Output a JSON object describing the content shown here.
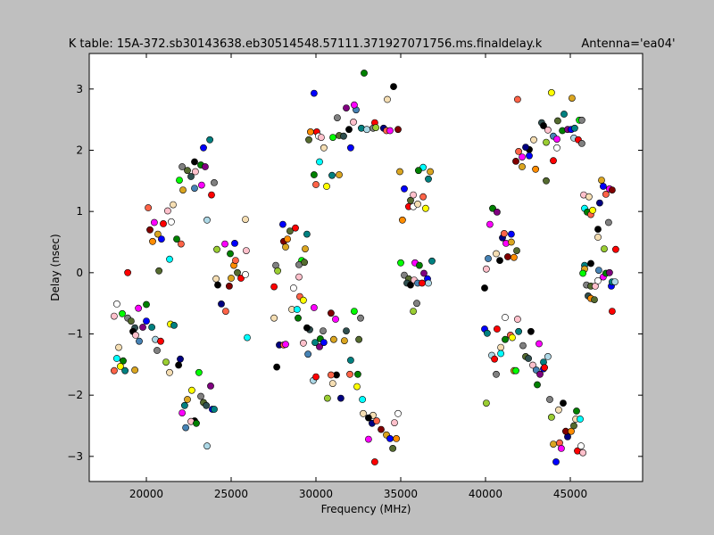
{
  "chart_data": {
    "type": "scatter",
    "title": "K table: 15A-372.sb30143638.eb30514548.57111.371927071756.ms.finaldelay.k",
    "subtitle": "Antenna='ea04'",
    "xlabel": "Frequency (MHz)",
    "ylabel": "Delay (nsec)",
    "xlim": [
      16632,
      49263
    ],
    "ylim": [
      -3.41,
      3.58
    ],
    "xticks": [
      20000,
      25000,
      30000,
      35000,
      40000,
      45000
    ],
    "xtick_labels": [
      "20000",
      "25000",
      "30000",
      "35000",
      "40000",
      "45000"
    ],
    "yticks": [
      -3,
      -2,
      -1,
      0,
      1,
      2,
      3
    ],
    "ytick_labels": [
      "−3",
      "−2",
      "−1",
      "0",
      "1",
      "2",
      "3"
    ],
    "grid": false,
    "legend": "none",
    "marker_colors": [
      "#ff0000",
      "#00ff00",
      "#0000ff",
      "#ffff00",
      "#ff00ff",
      "#00ffff",
      "#000000",
      "#ffffff",
      "#808080",
      "#ff8c00",
      "#008080",
      "#800000",
      "#008000",
      "#000080",
      "#ffc0cb",
      "#9acd32",
      "#556b2f",
      "#add8e6",
      "#daa520",
      "#800080",
      "#ff6347",
      "#4682b4",
      "#f5deb3",
      "#2f4f4f"
    ],
    "points": [
      [
        18900,
        0.0
      ],
      [
        18260,
        -0.51
      ],
      [
        18100,
        -0.71
      ],
      [
        18370,
        -1.22
      ],
      [
        18260,
        -1.4
      ],
      [
        18630,
        -1.44
      ],
      [
        18100,
        -1.6
      ],
      [
        18470,
        -1.53
      ],
      [
        18740,
        -1.6
      ],
      [
        19320,
        -1.59
      ],
      [
        18580,
        -0.67
      ],
      [
        18900,
        -0.74
      ],
      [
        19100,
        -0.79
      ],
      [
        19320,
        -0.9
      ],
      [
        19210,
        -0.96
      ],
      [
        19370,
        -1.02
      ],
      [
        19580,
        -1.12
      ],
      [
        19530,
        -0.58
      ],
      [
        20000,
        -0.52
      ],
      [
        19790,
        -0.89
      ],
      [
        20000,
        -0.79
      ],
      [
        20320,
        -0.89
      ],
      [
        20530,
        -1.09
      ],
      [
        20840,
        -1.12
      ],
      [
        20630,
        -1.27
      ],
      [
        21160,
        -1.46
      ],
      [
        21370,
        -1.63
      ],
      [
        21900,
        -1.51
      ],
      [
        22000,
        -1.41
      ],
      [
        20110,
        1.06
      ],
      [
        20470,
        0.82
      ],
      [
        20210,
        0.7
      ],
      [
        20680,
        0.63
      ],
      [
        20890,
        0.55
      ],
      [
        20370,
        0.51
      ],
      [
        20740,
        0.03
      ],
      [
        21000,
        0.8
      ],
      [
        21470,
        0.83
      ],
      [
        21260,
        1.01
      ],
      [
        21580,
        1.11
      ],
      [
        21370,
        0.22
      ],
      [
        21790,
        0.55
      ],
      [
        22050,
        0.47
      ],
      [
        21420,
        -0.84
      ],
      [
        21630,
        -0.86
      ],
      [
        22160,
        1.35
      ],
      [
        21950,
        1.51
      ],
      [
        22110,
        1.73
      ],
      [
        22420,
        1.67
      ],
      [
        22630,
        1.57
      ],
      [
        22840,
        1.81
      ],
      [
        22890,
        1.65
      ],
      [
        22840,
        1.38
      ],
      [
        23260,
        1.43
      ],
      [
        23210,
        1.76
      ],
      [
        23470,
        1.73
      ],
      [
        23370,
        2.04
      ],
      [
        23740,
        2.17
      ],
      [
        23580,
        0.86
      ],
      [
        23840,
        1.27
      ],
      [
        24000,
        1.47
      ],
      [
        24160,
        0.38
      ],
      [
        24110,
        -0.1
      ],
      [
        24210,
        -0.2
      ],
      [
        24420,
        -0.51
      ],
      [
        24680,
        -0.63
      ],
      [
        24630,
        0.47
      ],
      [
        24890,
        -0.22
      ],
      [
        25000,
        -0.09
      ],
      [
        25210,
        0.48
      ],
      [
        25160,
        0.12
      ],
      [
        25370,
        0.0
      ],
      [
        25580,
        -0.09
      ],
      [
        25840,
        -0.03
      ],
      [
        25890,
        0.36
      ],
      [
        25840,
        0.87
      ],
      [
        25950,
        -1.06
      ],
      [
        24950,
        0.31
      ],
      [
        25260,
        0.2
      ],
      [
        22680,
        -1.92
      ],
      [
        22260,
        -2.17
      ],
      [
        22420,
        -2.07
      ],
      [
        23100,
        -1.63
      ],
      [
        23210,
        -2.02
      ],
      [
        23370,
        -2.12
      ],
      [
        23530,
        -2.17
      ],
      [
        22840,
        -2.42
      ],
      [
        22630,
        -2.43
      ],
      [
        22320,
        -2.53
      ],
      [
        22110,
        -2.29
      ],
      [
        22950,
        -2.46
      ],
      [
        23790,
        -1.85
      ],
      [
        23890,
        -2.23
      ],
      [
        24000,
        -2.23
      ],
      [
        23580,
        -2.83
      ],
      [
        27530,
        -0.23
      ],
      [
        27630,
        0.12
      ],
      [
        27740,
        0.03
      ],
      [
        27530,
        -0.74
      ],
      [
        27690,
        -1.54
      ],
      [
        27840,
        -1.18
      ],
      [
        28100,
        -1.18
      ],
      [
        28210,
        -1.17
      ],
      [
        28100,
        0.51
      ],
      [
        28210,
        0.42
      ],
      [
        28050,
        0.79
      ],
      [
        28320,
        0.55
      ],
      [
        28470,
        0.68
      ],
      [
        28790,
        0.73
      ],
      [
        28680,
        -0.25
      ],
      [
        29000,
        -0.07
      ],
      [
        28580,
        -0.6
      ],
      [
        28890,
        -0.6
      ],
      [
        28950,
        -0.74
      ],
      [
        29050,
        -0.39
      ],
      [
        29260,
        -0.45
      ],
      [
        29470,
        0.63
      ],
      [
        29370,
        0.39
      ],
      [
        29160,
        0.2
      ],
      [
        29000,
        0.13
      ],
      [
        29320,
        0.17
      ],
      [
        29630,
        -0.93
      ],
      [
        29470,
        -0.9
      ],
      [
        29260,
        -1.15
      ],
      [
        29530,
        -1.33
      ],
      [
        29890,
        -0.57
      ],
      [
        30260,
        -1.08
      ],
      [
        30210,
        -1.21
      ],
      [
        30470,
        -1.14
      ],
      [
        29950,
        -1.14
      ],
      [
        29840,
        -1.76
      ],
      [
        30000,
        -1.7
      ],
      [
        30420,
        -0.95
      ],
      [
        30680,
        -2.05
      ],
      [
        30990,
        -1.81
      ],
      [
        31210,
        -1.67
      ],
      [
        31470,
        -2.05
      ],
      [
        30890,
        -1.67
      ],
      [
        31160,
        -0.76
      ],
      [
        30890,
        -0.66
      ],
      [
        31050,
        -1.09
      ],
      [
        29890,
        2.93
      ],
      [
        29680,
        2.3
      ],
      [
        29580,
        2.17
      ],
      [
        30050,
        2.3
      ],
      [
        30160,
        2.23
      ],
      [
        30310,
        2.21
      ],
      [
        30470,
        2.04
      ],
      [
        30210,
        1.81
      ],
      [
        29890,
        1.6
      ],
      [
        30000,
        1.44
      ],
      [
        30630,
        1.41
      ],
      [
        30950,
        1.59
      ],
      [
        31370,
        1.6
      ],
      [
        31000,
        2.21
      ],
      [
        31260,
        2.53
      ],
      [
        31370,
        2.24
      ],
      [
        31630,
        2.23
      ],
      [
        31950,
        2.34
      ],
      [
        32210,
        2.46
      ],
      [
        32370,
        2.66
      ],
      [
        32260,
        2.74
      ],
      [
        32840,
        3.26
      ],
      [
        31790,
        2.69
      ],
      [
        32050,
        2.04
      ],
      [
        32680,
        2.36
      ],
      [
        33000,
        2.34
      ],
      [
        33470,
        2.45
      ],
      [
        33370,
        2.36
      ],
      [
        33530,
        2.37
      ],
      [
        34210,
        2.83
      ],
      [
        34580,
        3.04
      ],
      [
        33990,
        2.36
      ],
      [
        34160,
        2.32
      ],
      [
        34370,
        2.32
      ],
      [
        34840,
        2.34
      ],
      [
        34950,
        1.65
      ],
      [
        35210,
        1.37
      ],
      [
        35100,
        0.86
      ],
      [
        35580,
        1.18
      ],
      [
        35470,
        1.08
      ],
      [
        35740,
        1.08
      ],
      [
        35740,
        1.27
      ],
      [
        36000,
        1.12
      ],
      [
        36320,
        1.72
      ],
      [
        36050,
        1.67
      ],
      [
        36320,
        1.24
      ],
      [
        36470,
        1.05
      ],
      [
        36630,
        1.53
      ],
      [
        36740,
        1.65
      ],
      [
        35000,
        0.16
      ],
      [
        35210,
        -0.04
      ],
      [
        35470,
        -0.1
      ],
      [
        35370,
        -0.17
      ],
      [
        35580,
        -0.2
      ],
      [
        35790,
        -0.12
      ],
      [
        36000,
        -0.17
      ],
      [
        35840,
        0.16
      ],
      [
        36100,
        0.12
      ],
      [
        36370,
        -0.01
      ],
      [
        36580,
        -0.1
      ],
      [
        36840,
        0.19
      ],
      [
        36630,
        -0.17
      ],
      [
        36260,
        -0.17
      ],
      [
        35950,
        -0.5
      ],
      [
        35740,
        -0.63
      ],
      [
        33370,
        -2.33
      ],
      [
        33100,
        -2.37
      ],
      [
        33310,
        -2.46
      ],
      [
        33580,
        -2.42
      ],
      [
        33100,
        -2.72
      ],
      [
        33840,
        -2.56
      ],
      [
        34160,
        -2.65
      ],
      [
        34370,
        -2.71
      ],
      [
        34740,
        -2.71
      ],
      [
        34530,
        -2.87
      ],
      [
        33470,
        -3.09
      ],
      [
        34840,
        -2.3
      ],
      [
        34630,
        -2.45
      ],
      [
        32790,
        -2.3
      ],
      [
        32740,
        -2.07
      ],
      [
        32470,
        -1.66
      ],
      [
        32000,
        -1.66
      ],
      [
        32420,
        -1.86
      ],
      [
        32050,
        -1.43
      ],
      [
        31680,
        -1.11
      ],
      [
        32260,
        -0.63
      ],
      [
        32630,
        -0.74
      ],
      [
        32530,
        -1.09
      ],
      [
        31790,
        -0.95
      ],
      [
        39950,
        -0.25
      ],
      [
        40050,
        0.06
      ],
      [
        40160,
        0.23
      ],
      [
        40260,
        0.79
      ],
      [
        40420,
        1.05
      ],
      [
        40680,
        0.99
      ],
      [
        39950,
        -0.92
      ],
      [
        40100,
        -0.99
      ],
      [
        40370,
        -1.35
      ],
      [
        40530,
        -1.41
      ],
      [
        40630,
        -1.66
      ],
      [
        40050,
        -2.13
      ],
      [
        40630,
        0.31
      ],
      [
        40840,
        0.2
      ],
      [
        41000,
        0.57
      ],
      [
        41100,
        0.64
      ],
      [
        41210,
        0.48
      ],
      [
        41310,
        0.26
      ],
      [
        41520,
        0.5
      ],
      [
        41520,
        0.63
      ],
      [
        41680,
        0.25
      ],
      [
        41840,
        0.36
      ],
      [
        40680,
        -0.92
      ],
      [
        41160,
        -0.73
      ],
      [
        41890,
        -0.76
      ],
      [
        40900,
        -1.22
      ],
      [
        40900,
        -1.32
      ],
      [
        41160,
        -1.09
      ],
      [
        41470,
        -1.02
      ],
      [
        41580,
        -1.06
      ],
      [
        41950,
        -0.96
      ],
      [
        41680,
        -1.6
      ],
      [
        41790,
        -1.6
      ],
      [
        42210,
        -1.19
      ],
      [
        42370,
        -1.37
      ],
      [
        42530,
        -1.4
      ],
      [
        42680,
        -0.96
      ],
      [
        42790,
        -1.51
      ],
      [
        42990,
        -1.59
      ],
      [
        43160,
        -1.16
      ],
      [
        43050,
        -1.83
      ],
      [
        43210,
        -1.66
      ],
      [
        43420,
        -1.57
      ],
      [
        43420,
        -1.46
      ],
      [
        43680,
        -1.37
      ],
      [
        43480,
        -1.55
      ],
      [
        43790,
        -2.07
      ],
      [
        43890,
        -2.36
      ],
      [
        44310,
        -2.24
      ],
      [
        44580,
        -2.13
      ],
      [
        44840,
        -2.68
      ],
      [
        44370,
        -2.78
      ],
      [
        44470,
        -2.87
      ],
      [
        44730,
        -2.59
      ],
      [
        44000,
        -2.8
      ],
      [
        44160,
        -3.09
      ],
      [
        45050,
        -2.59
      ],
      [
        45210,
        -2.5
      ],
      [
        45420,
        -2.91
      ],
      [
        45630,
        -2.83
      ],
      [
        45740,
        -2.94
      ],
      [
        45320,
        -2.39
      ],
      [
        45580,
        -2.39
      ],
      [
        45370,
        -2.26
      ],
      [
        41890,
        2.83
      ],
      [
        43890,
        2.94
      ],
      [
        44630,
        2.59
      ],
      [
        45100,
        2.85
      ],
      [
        45530,
        2.49
      ],
      [
        45680,
        2.49
      ],
      [
        44260,
        2.48
      ],
      [
        43310,
        2.45
      ],
      [
        43420,
        2.4
      ],
      [
        43680,
        2.33
      ],
      [
        44000,
        2.23
      ],
      [
        44210,
        2.18
      ],
      [
        44530,
        2.32
      ],
      [
        44840,
        2.34
      ],
      [
        45050,
        2.34
      ],
      [
        45260,
        2.36
      ],
      [
        45210,
        2.2
      ],
      [
        45470,
        2.17
      ],
      [
        45680,
        2.11
      ],
      [
        43580,
        2.13
      ],
      [
        42840,
        2.17
      ],
      [
        42580,
        2.01
      ],
      [
        42370,
        2.05
      ],
      [
        41950,
        1.98
      ],
      [
        42160,
        1.89
      ],
      [
        41790,
        1.82
      ],
      [
        42160,
        1.73
      ],
      [
        42580,
        1.91
      ],
      [
        42950,
        1.69
      ],
      [
        43580,
        1.5
      ],
      [
        44000,
        1.83
      ],
      [
        44210,
        2.04
      ],
      [
        45790,
        1.27
      ],
      [
        46100,
        1.24
      ],
      [
        45840,
        1.05
      ],
      [
        46000,
        0.99
      ],
      [
        46210,
        0.95
      ],
      [
        46320,
        1.02
      ],
      [
        45840,
        0.12
      ],
      [
        45840,
        0.06
      ],
      [
        45740,
        -0.01
      ],
      [
        45950,
        -0.2
      ],
      [
        46210,
        -0.22
      ],
      [
        46050,
        -0.38
      ],
      [
        46210,
        0.15
      ],
      [
        46470,
        -0.22
      ],
      [
        46680,
        0.04
      ],
      [
        46940,
        -0.07
      ],
      [
        47100,
        -0.01
      ],
      [
        47310,
        0.0
      ],
      [
        47420,
        -0.22
      ],
      [
        47470,
        -0.15
      ],
      [
        47630,
        -0.15
      ],
      [
        47680,
        0.38
      ],
      [
        47260,
        0.82
      ],
      [
        47000,
        0.39
      ],
      [
        46630,
        0.58
      ],
      [
        46630,
        0.71
      ],
      [
        46730,
        1.14
      ],
      [
        47100,
        1.28
      ],
      [
        47310,
        1.37
      ],
      [
        47470,
        1.35
      ],
      [
        46840,
        1.51
      ],
      [
        46940,
        1.41
      ],
      [
        46210,
        -0.42
      ],
      [
        46420,
        -0.44
      ],
      [
        47470,
        -0.63
      ],
      [
        46630,
        -0.13
      ]
    ]
  }
}
